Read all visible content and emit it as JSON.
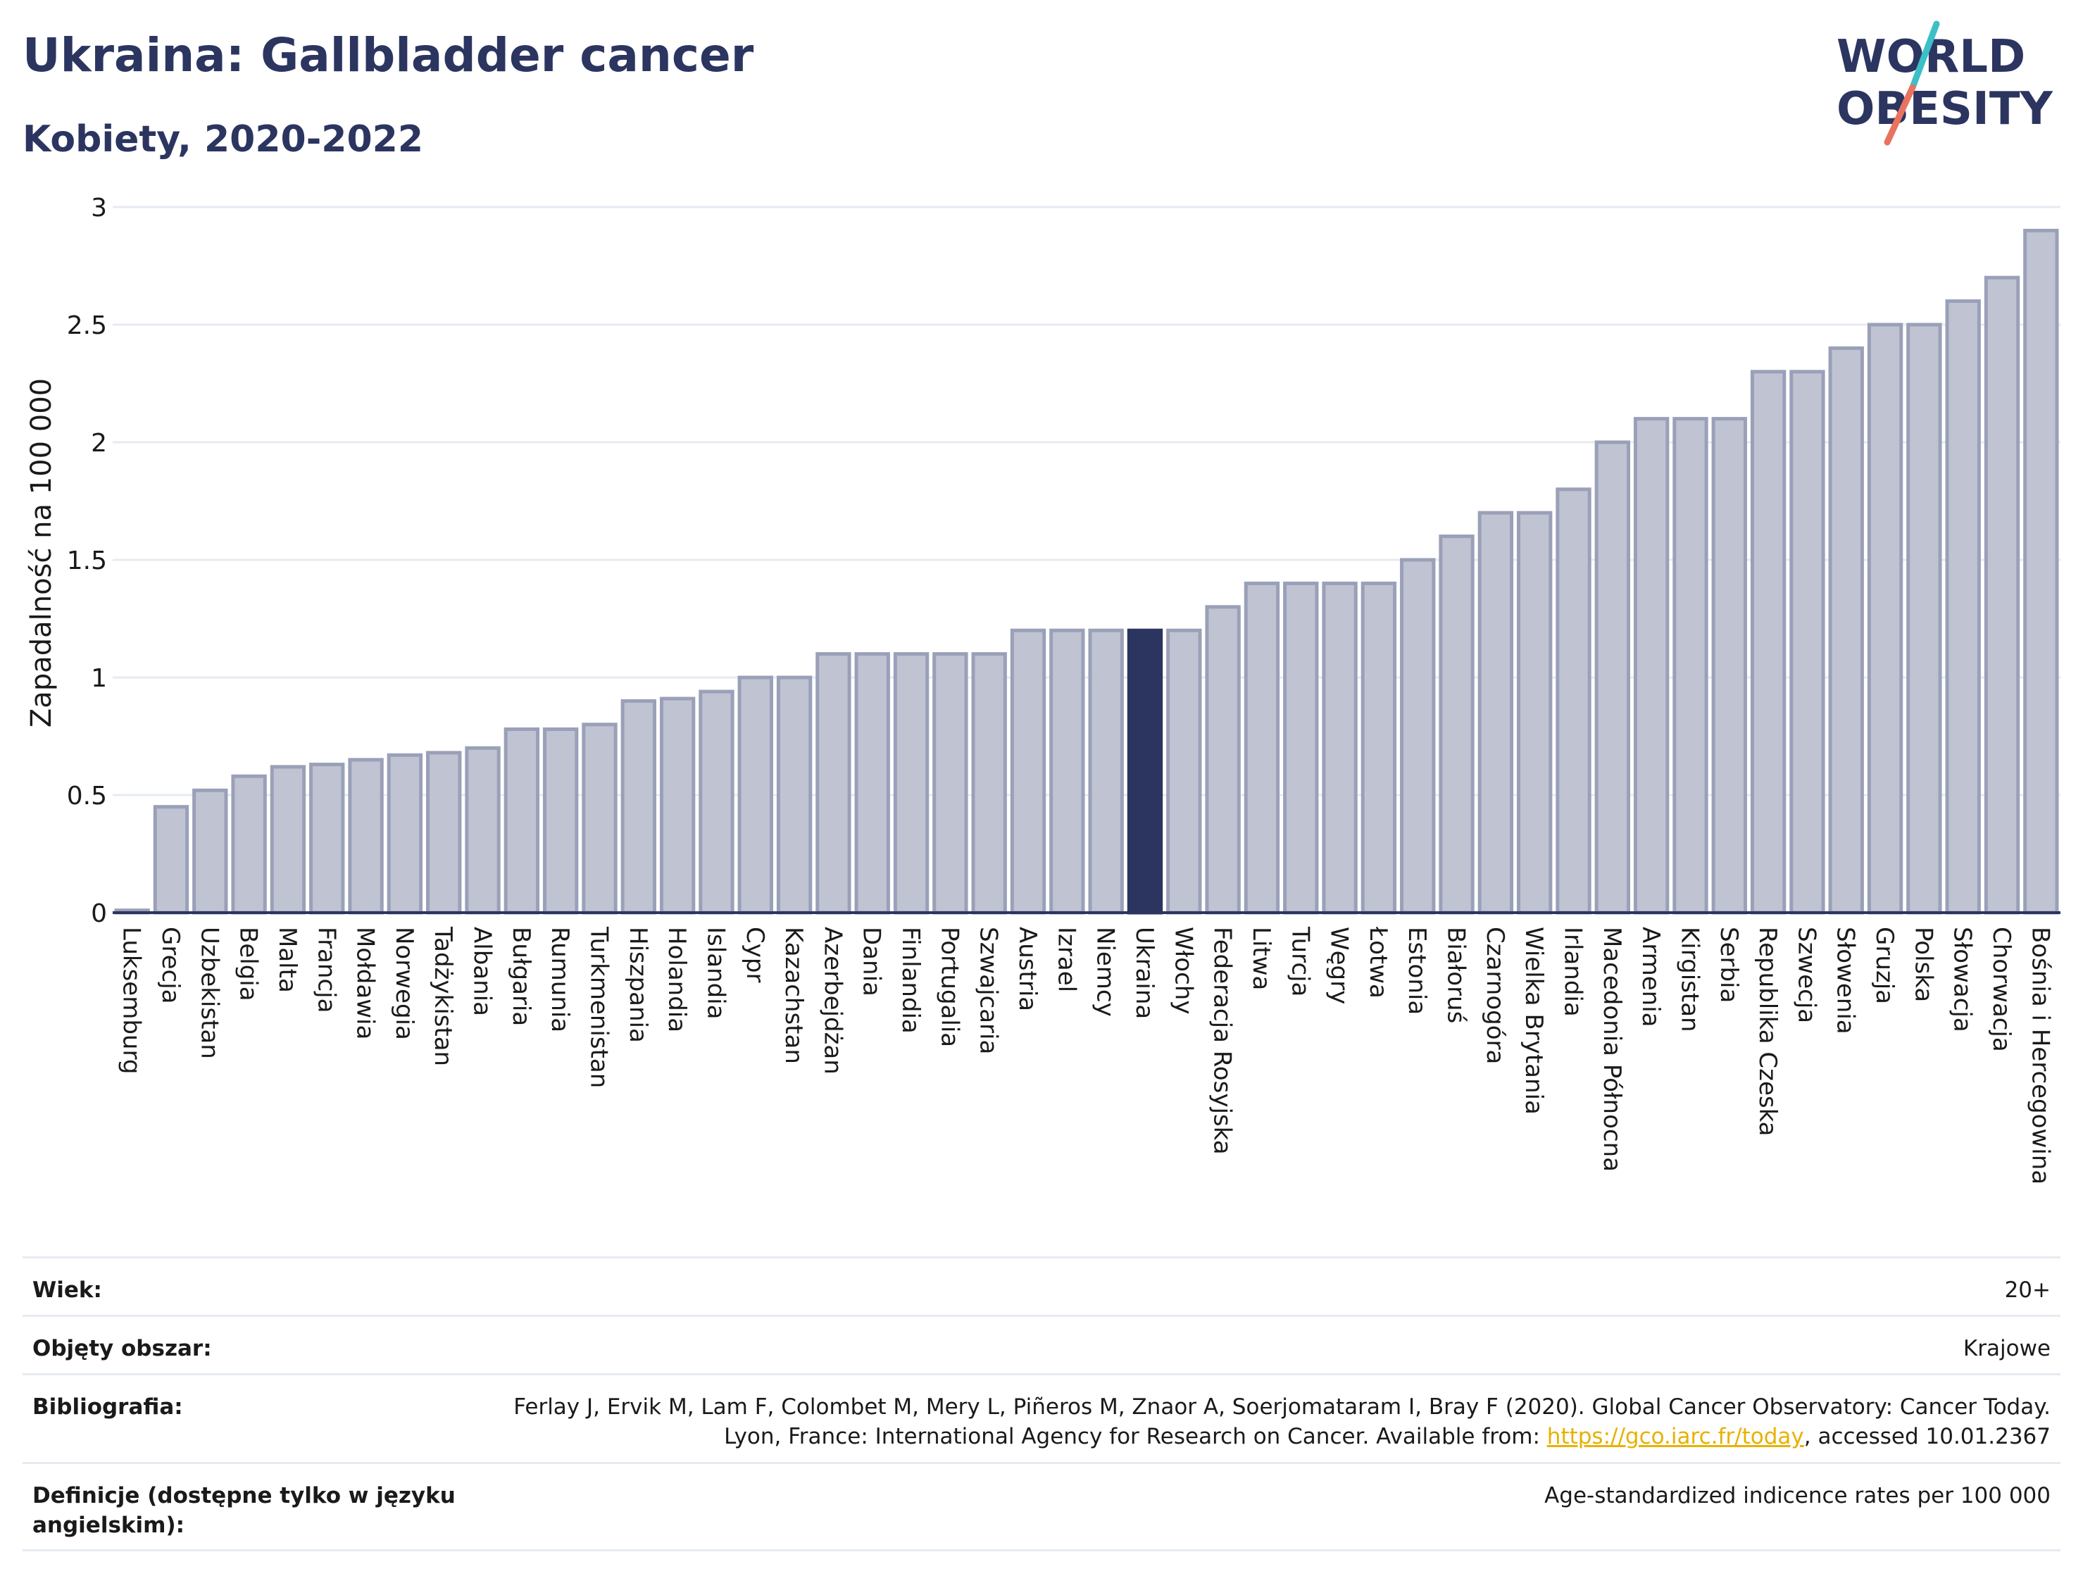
{
  "header": {
    "title": "Ukraina: Gallbladder cancer",
    "subtitle": "Kobiety, 2020-2022"
  },
  "logo": {
    "line1": "WORLD",
    "line2": "OBESITY",
    "slash_colors": [
      "#3dbfc7",
      "#e8735f"
    ]
  },
  "colors": {
    "bar": "#bfc3d2",
    "bar_stroke": "#9aa0b8",
    "highlight": "#2b3560",
    "text": "#2b3560"
  },
  "chart_data": {
    "type": "bar",
    "ylabel": "Zapadalność na 100 000",
    "ylim": [
      0,
      3
    ],
    "yticks": [
      0,
      0.5,
      1,
      1.5,
      2,
      2.5,
      3
    ],
    "ytick_labels": [
      "0",
      "0.5",
      "1",
      "1.5",
      "2",
      "2.5",
      "3"
    ],
    "highlight": "Ukraina",
    "categories": [
      "Luksemburg",
      "Grecja",
      "Uzbekistan",
      "Belgia",
      "Malta",
      "Francja",
      "Mołdawia",
      "Norwegia",
      "Tadżykistan",
      "Albania",
      "Bułgaria",
      "Rumunia",
      "Turkmenistan",
      "Hiszpania",
      "Holandia",
      "Islandia",
      "Cypr",
      "Kazachstan",
      "Azerbejdżan",
      "Dania",
      "Finlandia",
      "Portugalia",
      "Szwajcaria",
      "Austria",
      "Izrael",
      "Niemcy",
      "Ukraina",
      "Włochy",
      "Federacja Rosyjska",
      "Litwa",
      "Turcja",
      "Węgry",
      "Łotwa",
      "Estonia",
      "Białoruś",
      "Czarnogóra",
      "Wielka Brytania",
      "Irlandia",
      "Macedonia Północna",
      "Armenia",
      "Kirgistan",
      "Serbia",
      "Republika Czeska",
      "Szwecja",
      "Słowenia",
      "Gruzja",
      "Polska",
      "Słowacja",
      "Chorwacja",
      "Bośnia i Hercegowina"
    ],
    "values": [
      0.01,
      0.45,
      0.52,
      0.58,
      0.62,
      0.63,
      0.65,
      0.67,
      0.68,
      0.7,
      0.78,
      0.78,
      0.8,
      0.9,
      0.91,
      0.94,
      1.0,
      1.0,
      1.1,
      1.1,
      1.1,
      1.1,
      1.1,
      1.2,
      1.2,
      1.2,
      1.2,
      1.2,
      1.3,
      1.4,
      1.4,
      1.4,
      1.4,
      1.5,
      1.6,
      1.7,
      1.7,
      1.8,
      2.0,
      2.1,
      2.1,
      2.1,
      2.3,
      2.3,
      2.4,
      2.5,
      2.5,
      2.6,
      2.7,
      2.9
    ]
  },
  "meta": {
    "wiek_label": "Wiek:",
    "wiek_value": "20+",
    "obszar_label": "Objęty obszar:",
    "obszar_value": "Krajowe",
    "bibliografia_label": "Bibliografia:",
    "bibliografia_text1": "Ferlay J, Ervik M, Lam F, Colombet M, Mery L, Piñeros M, Znaor A, Soerjomataram I, Bray F (2020). Global Cancer Observatory: Cancer Today. Lyon, France: International Agency for Research on Cancer. Available from: ",
    "bibliografia_link": "https://gco.iarc.fr/today",
    "bibliografia_text2": ", accessed 10.01.2367",
    "definicje_label": "Definicje (dostępne tylko w języku angielskim):",
    "definicje_value": "Age-standardized indicence rates per 100 000"
  }
}
